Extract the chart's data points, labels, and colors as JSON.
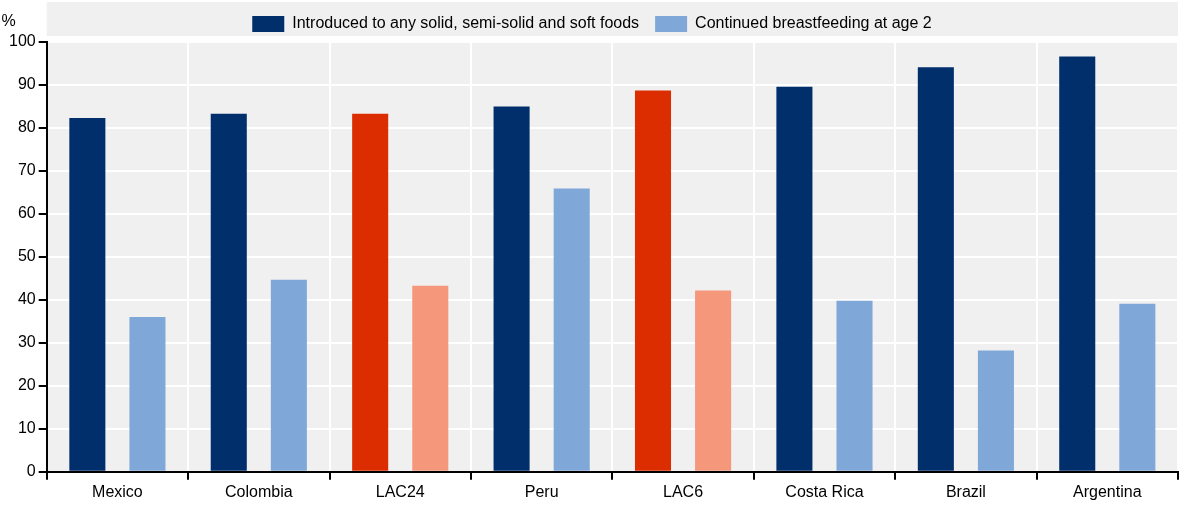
{
  "chart_data": {
    "type": "bar",
    "ylabel": "%",
    "categories": [
      "Mexico",
      "Colombia",
      "LAC24",
      "Peru",
      "LAC6",
      "Costa Rica",
      "Brazil",
      "Argentina"
    ],
    "series": [
      {
        "name": "Introduced to any solid, semi-solid and soft foods",
        "color": "#002f6c",
        "colors": [
          "#002f6c",
          "#002f6c",
          "#dc2d00",
          "#002f6c",
          "#dc2d00",
          "#002f6c",
          "#002f6c",
          "#002f6c"
        ],
        "values": [
          82.3,
          83.3,
          83.3,
          85.0,
          88.7,
          89.6,
          94.1,
          96.6
        ]
      },
      {
        "name": "Continued breastfeeding at age 2",
        "color": "#7fa8d9",
        "colors": [
          "#7fa8d9",
          "#7fa8d9",
          "#f5977a",
          "#7fa8d9",
          "#f5977a",
          "#7fa8d9",
          "#7fa8d9",
          "#7fa8d9"
        ],
        "values": [
          36.0,
          44.7,
          43.3,
          65.9,
          42.2,
          39.8,
          28.2,
          39.1
        ]
      }
    ],
    "ylim": [
      0,
      100
    ],
    "yticks": [
      0,
      10,
      20,
      30,
      40,
      50,
      60,
      70,
      80,
      90,
      100
    ],
    "grid": true,
    "legend": "top"
  }
}
